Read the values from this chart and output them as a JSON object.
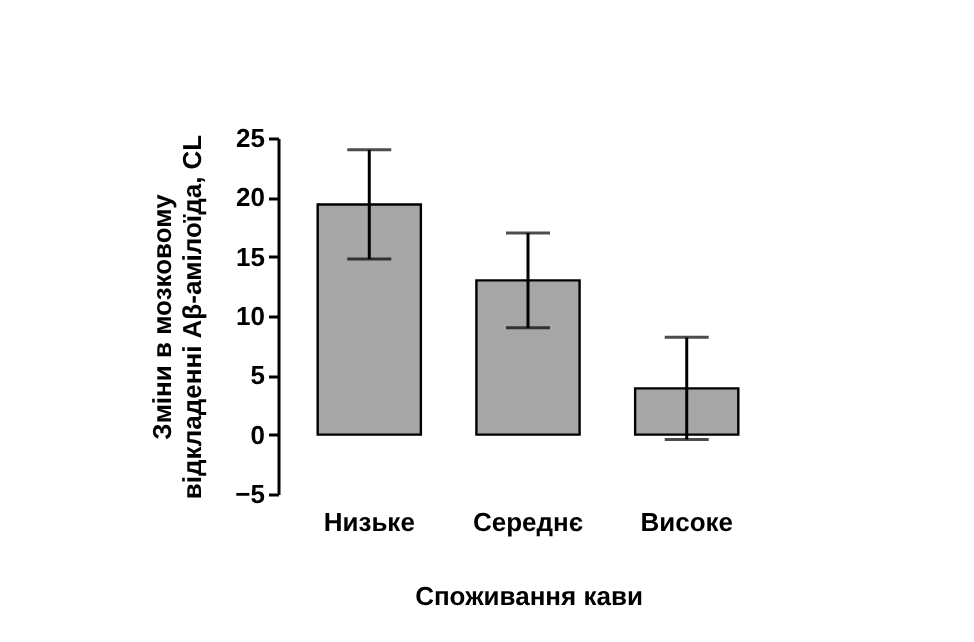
{
  "chart_data": {
    "type": "bar",
    "xlabel": "Споживання кави",
    "ylabel": "Зміни в мозковому\nвідкладенні Aβ-амілоїда, CL",
    "categories": [
      "Низьке",
      "Середнє",
      "Високе"
    ],
    "values": [
      19.4,
      13.0,
      3.9
    ],
    "errors": [
      4.6,
      4.0,
      4.3
    ],
    "color": "#a6a6a6",
    "ylim": [
      -5,
      25
    ],
    "yticks": [
      -5,
      0,
      5,
      10,
      15,
      20,
      25
    ],
    "grid": false
  }
}
